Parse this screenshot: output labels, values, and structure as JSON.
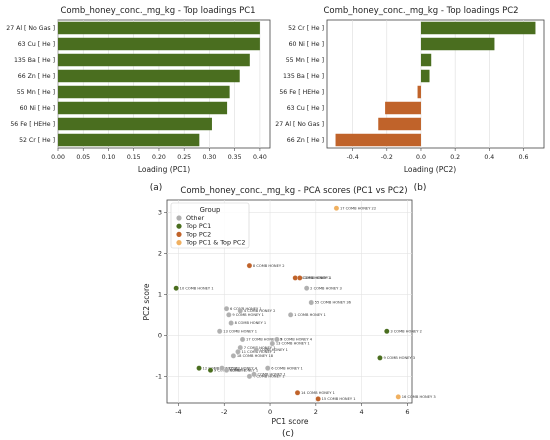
{
  "chart_data": [
    {
      "type": "bar",
      "orientation": "horizontal",
      "title": "Comb_honey_conc._mg_kg - Top loadings PC1",
      "xlabel": "Loading (PC1)",
      "ylabel": "",
      "panel_label": "(a)",
      "categories": [
        "27 Al [ No Gas ]",
        "63 Cu [ He ]",
        "135 Ba [ He ]",
        "66 Zn [ He ]",
        "55 Mn [ He ]",
        "60 Ni [ He ]",
        "56 Fe [ HEHe ]",
        "52 Cr [ He ]"
      ],
      "values": [
        0.4,
        0.4,
        0.38,
        0.36,
        0.34,
        0.335,
        0.305,
        0.28
      ],
      "colors": [
        "#4a6e1f",
        "#4a6e1f",
        "#4a6e1f",
        "#4a6e1f",
        "#4a6e1f",
        "#4a6e1f",
        "#4a6e1f",
        "#4a6e1f"
      ],
      "xlim": [
        0,
        0.42
      ],
      "xticks": [
        "0.00",
        "0.05",
        "0.10",
        "0.15",
        "0.20",
        "0.25",
        "0.30",
        "0.35",
        "0.40"
      ],
      "grid": "vertical"
    },
    {
      "type": "bar",
      "orientation": "horizontal",
      "title": "Comb_honey_conc._mg_kg - Top loadings PC2",
      "xlabel": "Loading (PC2)",
      "ylabel": "",
      "panel_label": "(b)",
      "categories": [
        "52 Cr [ He ]",
        "60 Ni [ He ]",
        "55 Mn [ He ]",
        "135 Ba [ He ]",
        "56 Fe [ HEHe ]",
        "63 Cu [ He ]",
        "27 Al [ No Gas ]",
        "66 Zn [ He ]"
      ],
      "values": [
        0.67,
        0.43,
        0.06,
        0.05,
        -0.02,
        -0.21,
        -0.25,
        -0.5
      ],
      "colors": [
        "#4a6e1f",
        "#4a6e1f",
        "#4a6e1f",
        "#4a6e1f",
        "#c0632a",
        "#c0632a",
        "#c0632a",
        "#c0632a"
      ],
      "xlim": [
        -0.55,
        0.72
      ],
      "xticks": [
        "-0.4",
        "-0.2",
        "0.0",
        "0.2",
        "0.4",
        "0.6"
      ],
      "xtick_values": [
        -0.4,
        -0.2,
        0.0,
        0.2,
        0.4,
        0.6
      ],
      "grid": "vertical"
    },
    {
      "type": "scatter",
      "title": "Comb_honey_conc._mg_kg - PCA scores (PC1 vs PC2)",
      "xlabel": "PC1 score",
      "ylabel": "PC2 score",
      "panel_label": "(c)",
      "xlim": [
        -4.5,
        6.2
      ],
      "ylim": [
        -1.65,
        3.3
      ],
      "xticks": [
        -4,
        -2,
        0,
        2,
        4,
        6
      ],
      "yticks": [
        -1,
        0,
        1,
        2,
        3
      ],
      "grid": true,
      "legend": {
        "title": "Group",
        "placement": "top-left",
        "entries": [
          {
            "name": "Other",
            "color": "#b0b0b0"
          },
          {
            "name": "Top PC1",
            "color": "#4a6e1f"
          },
          {
            "name": "Top PC2",
            "color": "#c0632a"
          },
          {
            "name": "Top PC1 & Top PC2",
            "color": "#f0b060"
          }
        ]
      },
      "points": [
        {
          "x": 2.9,
          "y": 3.1,
          "label": "17 COMB HONEY 22",
          "group": "Top PC1 & Top PC2"
        },
        {
          "x": -0.9,
          "y": 1.7,
          "label": "8 COMB HONEY 2",
          "group": "Top PC2"
        },
        {
          "x": 1.1,
          "y": 1.4,
          "label": "2 COMB HONEY 1",
          "group": "Top PC2"
        },
        {
          "x": 1.3,
          "y": 1.4,
          "label": "COMB HONEY 1",
          "group": "Top PC2"
        },
        {
          "x": 1.6,
          "y": 1.15,
          "label": "2 COMB HONEY 3",
          "group": "Other"
        },
        {
          "x": -4.1,
          "y": 1.15,
          "label": "10 COMB HONEY 1",
          "group": "Top PC1"
        },
        {
          "x": 1.8,
          "y": 0.8,
          "label": "55 COMB HONEY 36",
          "group": "Other"
        },
        {
          "x": -1.9,
          "y": 0.65,
          "label": "6 COMB HONEY 1",
          "group": "Other"
        },
        {
          "x": -1.3,
          "y": 0.6,
          "label": "4 COMB HONEY 2",
          "group": "Other"
        },
        {
          "x": -1.8,
          "y": 0.5,
          "label": "9 COMB HONEY 1",
          "group": "Other"
        },
        {
          "x": 0.9,
          "y": 0.5,
          "label": "1 COMB HONEY 1",
          "group": "Other"
        },
        {
          "x": -1.7,
          "y": 0.3,
          "label": "8 COMB HONEY 1",
          "group": "Other"
        },
        {
          "x": -2.2,
          "y": 0.1,
          "label": "13 COMB HONEY 1",
          "group": "Other"
        },
        {
          "x": 5.1,
          "y": 0.1,
          "label": "3 COMB HONEY 2",
          "group": "Top PC1"
        },
        {
          "x": -1.2,
          "y": -0.1,
          "label": "17 COMB HONEY 15",
          "group": "Other"
        },
        {
          "x": 0.3,
          "y": -0.1,
          "label": "4 COMB HONEY 4",
          "group": "Other"
        },
        {
          "x": 0.1,
          "y": -0.2,
          "label": "13 COMB HONEY 1",
          "group": "Other"
        },
        {
          "x": -1.3,
          "y": -0.3,
          "label": "7 COMB HONEY 1",
          "group": "Other"
        },
        {
          "x": -1.4,
          "y": -0.4,
          "label": "11 COMB HONEY 1",
          "group": "Other"
        },
        {
          "x": -0.6,
          "y": -0.35,
          "label": "COMB HONEY 1",
          "group": "Other"
        },
        {
          "x": -1.6,
          "y": -0.5,
          "label": "18 COMB HONEY 18",
          "group": "Other"
        },
        {
          "x": 4.8,
          "y": -0.55,
          "label": "9 COMB HONEY 3",
          "group": "Top PC1"
        },
        {
          "x": -3.1,
          "y": -0.8,
          "label": "12 COMB HONEY 1",
          "group": "Top PC1"
        },
        {
          "x": -2.6,
          "y": -0.85,
          "label": "9 COMB HONEY 1",
          "group": "Top PC1"
        },
        {
          "x": -2.1,
          "y": -0.8,
          "label": "5 COMB HONEY 4",
          "group": "Other"
        },
        {
          "x": -1.9,
          "y": -0.85,
          "label": "COMB HONEY 1",
          "group": "Other"
        },
        {
          "x": -0.1,
          "y": -0.8,
          "label": "6 COMB HONEY 1",
          "group": "Other"
        },
        {
          "x": -0.9,
          "y": -1.0,
          "label": "4 COMB HONEY 1",
          "group": "Other"
        },
        {
          "x": -0.7,
          "y": -0.95,
          "label": "COMB HONEY 1",
          "group": "Other"
        },
        {
          "x": 1.2,
          "y": -1.4,
          "label": "14 COMB HONEY 1",
          "group": "Top PC2"
        },
        {
          "x": 2.1,
          "y": -1.55,
          "label": "15 COMB HONEY 1",
          "group": "Top PC2"
        },
        {
          "x": 5.6,
          "y": -1.5,
          "label": "16 COMB HONEY 3",
          "group": "Top PC1 & Top PC2"
        }
      ]
    }
  ]
}
